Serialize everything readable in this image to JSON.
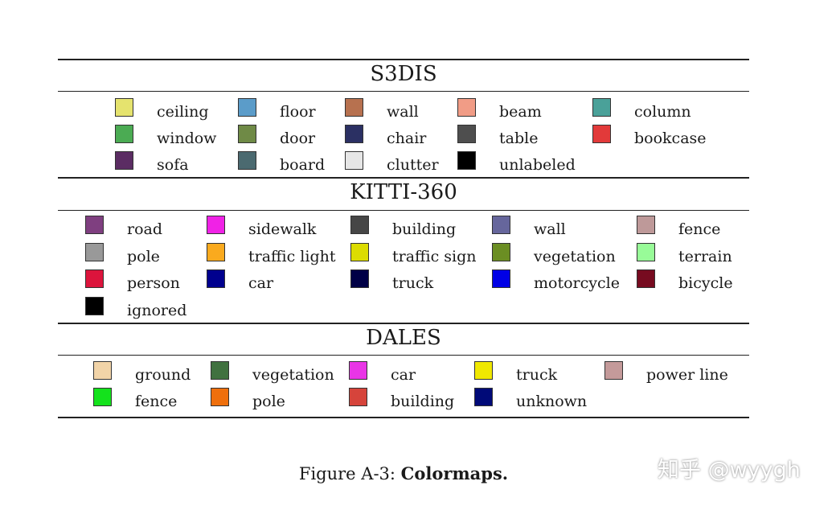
{
  "sections": [
    {
      "title": "S3DIS",
      "rows": [
        [
          {
            "label": "ceiling",
            "color": "#e5e36e"
          },
          {
            "label": "floor",
            "color": "#5b9cc9"
          },
          {
            "label": "wall",
            "color": "#b7714f"
          },
          {
            "label": "beam",
            "color": "#f19c86"
          },
          {
            "label": "column",
            "color": "#4aa199"
          }
        ],
        [
          {
            "label": "window",
            "color": "#4bab53"
          },
          {
            "label": "door",
            "color": "#6f8a46"
          },
          {
            "label": "chair",
            "color": "#2b3063"
          },
          {
            "label": "table",
            "color": "#4e4e4e"
          },
          {
            "label": "bookcase",
            "color": "#e23a3a"
          }
        ],
        [
          {
            "label": "sofa",
            "color": "#5b2c63"
          },
          {
            "label": "board",
            "color": "#4b6a70"
          },
          {
            "label": "clutter",
            "color": "#e6e6e6"
          },
          {
            "label": "unlabeled",
            "color": "#000000"
          }
        ]
      ]
    },
    {
      "title": "KITTI-360",
      "rows": [
        [
          {
            "label": "road",
            "color": "#7f3f80"
          },
          {
            "label": "sidewalk",
            "color": "#f022e6"
          },
          {
            "label": "building",
            "color": "#464646"
          },
          {
            "label": "wall",
            "color": "#66669c"
          },
          {
            "label": "fence",
            "color": "#be9999"
          }
        ],
        [
          {
            "label": "pole",
            "color": "#999999"
          },
          {
            "label": "traffic light",
            "color": "#faaa1e"
          },
          {
            "label": "traffic sign",
            "color": "#dcdc00"
          },
          {
            "label": "vegetation",
            "color": "#6b8e23"
          },
          {
            "label": "terrain",
            "color": "#98fb98"
          }
        ],
        [
          {
            "label": "person",
            "color": "#dc143c"
          },
          {
            "label": "car",
            "color": "#00008e"
          },
          {
            "label": "truck",
            "color": "#000046"
          },
          {
            "label": "motorcycle",
            "color": "#0000e6"
          },
          {
            "label": "bicycle",
            "color": "#770b20"
          }
        ],
        [
          {
            "label": "ignored",
            "color": "#000000"
          }
        ]
      ]
    },
    {
      "title": "DALES",
      "rows": [
        [
          {
            "label": "ground",
            "color": "#f2d4a8"
          },
          {
            "label": "vegetation",
            "color": "#40713f"
          },
          {
            "label": "car",
            "color": "#e935e6"
          },
          {
            "label": "truck",
            "color": "#f0e800"
          },
          {
            "label": "power line",
            "color": "#c49a9a"
          }
        ],
        [
          {
            "label": "fence",
            "color": "#14e21c"
          },
          {
            "label": "pole",
            "color": "#ef6f0c"
          },
          {
            "label": "building",
            "color": "#d6443b"
          },
          {
            "label": "unknown",
            "color": "#000a78"
          }
        ]
      ]
    }
  ],
  "caption": {
    "prefix": "Figure A-3: ",
    "bold": "Colormaps."
  },
  "watermark": "知乎 @wyygh"
}
